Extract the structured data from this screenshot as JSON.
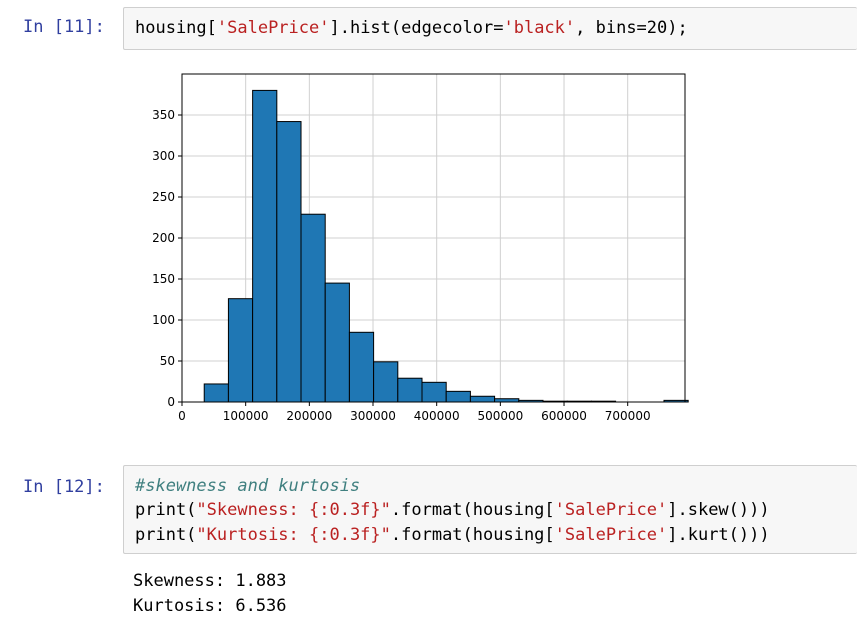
{
  "cells": [
    {
      "prompt": "In [11]:",
      "code": [
        [
          [
            "housing[",
            ""
          ],
          [
            "'SalePrice'",
            "str"
          ],
          [
            "].hist(edgecolor=",
            ""
          ],
          [
            "'black'",
            "str"
          ],
          [
            ", bins=20);",
            ""
          ]
        ]
      ]
    },
    {
      "prompt": "In [12]:",
      "code": [
        [
          [
            "#skewness and kurtosis",
            "com"
          ]
        ],
        [
          [
            "print(",
            ""
          ],
          [
            "\"Skewness: {:0.3f}\"",
            "str"
          ],
          [
            ".format(housing[",
            ""
          ],
          [
            "'SalePrice'",
            "str"
          ],
          [
            "].skew()))",
            ""
          ]
        ],
        [
          [
            "print(",
            ""
          ],
          [
            "\"Kurtosis: {:0.3f}\"",
            "str"
          ],
          [
            ".format(housing[",
            ""
          ],
          [
            "'SalePrice'",
            "str"
          ],
          [
            "].kurt()))",
            ""
          ]
        ]
      ],
      "output": [
        "Skewness: 1.883",
        "Kurtosis: 6.536"
      ]
    }
  ],
  "chart_data": {
    "type": "bar",
    "title": "",
    "xlabel": "",
    "ylabel": "",
    "grid": true,
    "xlim": [
      0,
      790000
    ],
    "ylim": [
      0,
      400
    ],
    "xticks": [
      0,
      100000,
      200000,
      300000,
      400000,
      500000,
      600000,
      700000
    ],
    "xtick_labels": [
      "0",
      "100000",
      "200000",
      "300000",
      "400000",
      "500000",
      "600000",
      "700000"
    ],
    "yticks": [
      0,
      50,
      100,
      150,
      200,
      250,
      300,
      350
    ],
    "ytick_labels": [
      "0",
      "50",
      "100",
      "150",
      "200",
      "250",
      "300",
      "350"
    ],
    "bin_edges": [
      34900,
      72905,
      110910,
      148915,
      186920,
      224925,
      262930,
      300935,
      338940,
      376945,
      414950,
      452955,
      490960,
      528965,
      566970,
      604975,
      642980,
      680985,
      718990,
      756995,
      795000
    ],
    "values": [
      22,
      126,
      380,
      342,
      229,
      145,
      85,
      49,
      29,
      24,
      13,
      7,
      4,
      2,
      1,
      1,
      1,
      0,
      0,
      2
    ],
    "bar_color": "#1f77b4",
    "edge_color": "#000000"
  }
}
